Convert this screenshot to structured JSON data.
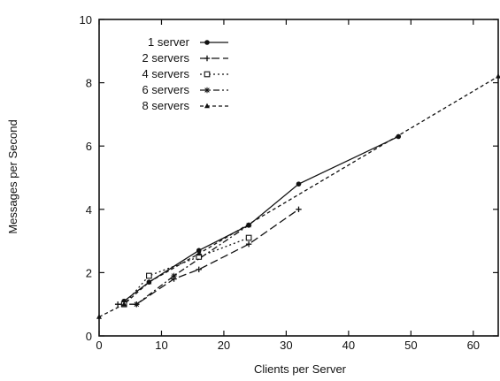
{
  "chart_data": {
    "type": "line",
    "title": "",
    "xlabel": "Clients per Server",
    "ylabel": "Messages per Second",
    "xlim": [
      0,
      64
    ],
    "ylim": [
      0,
      10
    ],
    "xticks": [
      0,
      10,
      20,
      30,
      40,
      50,
      60
    ],
    "yticks": [
      0,
      2,
      4,
      6,
      8,
      10
    ],
    "grid": false,
    "legend_position": "top-left",
    "series": [
      {
        "name": "1 server",
        "marker": "filled-circle",
        "dash": "solid",
        "points": [
          [
            4,
            1.1
          ],
          [
            8,
            1.7
          ],
          [
            16,
            2.7
          ],
          [
            24,
            3.5
          ],
          [
            32,
            4.8
          ],
          [
            48,
            6.3
          ]
        ]
      },
      {
        "name": "2 servers",
        "marker": "plus",
        "dash": "long-dash",
        "points": [
          [
            3,
            1.0
          ],
          [
            6,
            1.0
          ],
          [
            12,
            1.8
          ],
          [
            16,
            2.1
          ],
          [
            24,
            2.9
          ],
          [
            32,
            4.0
          ]
        ]
      },
      {
        "name": "4 servers",
        "marker": "open-square",
        "dash": "dotted",
        "points": [
          [
            4,
            1.0
          ],
          [
            8,
            1.9
          ],
          [
            16,
            2.5
          ],
          [
            24,
            3.1
          ]
        ]
      },
      {
        "name": "6 servers",
        "marker": "asterisk",
        "dash": "dash-dot",
        "points": [
          [
            6,
            1.0
          ],
          [
            12,
            1.9
          ],
          [
            24,
            3.5
          ]
        ]
      },
      {
        "name": "8 servers",
        "marker": "triangle",
        "dash": "dashed",
        "points": [
          [
            0,
            0.6
          ],
          [
            4,
            1.0
          ],
          [
            8,
            1.7
          ],
          [
            16,
            2.6
          ],
          [
            64,
            8.2
          ]
        ]
      }
    ]
  }
}
